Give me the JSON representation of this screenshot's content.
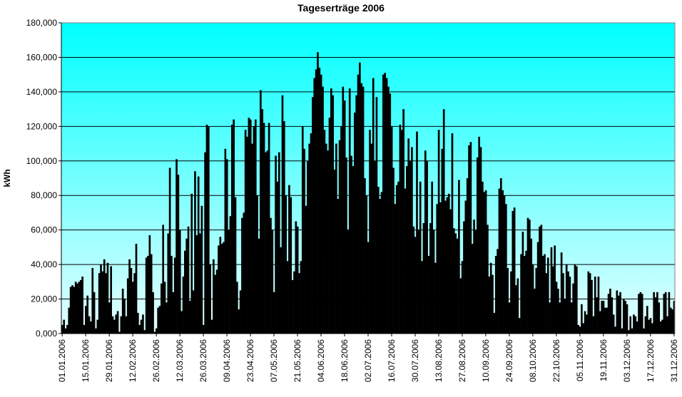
{
  "chart_data": {
    "type": "bar",
    "title": "Tageserträge 2006",
    "y_label": "kWh",
    "color": "#000000",
    "grid": true,
    "background": [
      "#00ffff",
      "#e8ffff"
    ],
    "ylim": [
      0,
      180
    ],
    "yticks": [
      {
        "value": 0,
        "label": "0,000"
      },
      {
        "value": 20,
        "label": "20,000"
      },
      {
        "value": 40,
        "label": "40,000"
      },
      {
        "value": 60,
        "label": "60,000"
      },
      {
        "value": 80,
        "label": "80,000"
      },
      {
        "value": 100,
        "label": "100,000"
      },
      {
        "value": 120,
        "label": "120,000"
      },
      {
        "value": 140,
        "label": "140,000"
      },
      {
        "value": 160,
        "label": "160,000"
      },
      {
        "value": 180,
        "label": "180,000"
      }
    ],
    "categories": [
      "01.01.2006",
      null,
      null,
      null,
      null,
      null,
      null,
      null,
      null,
      null,
      null,
      null,
      null,
      null,
      "15.01.2006",
      null,
      null,
      null,
      null,
      null,
      null,
      null,
      null,
      null,
      null,
      null,
      null,
      null,
      "29.01.2006",
      null,
      null,
      null,
      null,
      null,
      null,
      null,
      null,
      null,
      null,
      null,
      null,
      null,
      "12.02.2006",
      null,
      null,
      null,
      null,
      null,
      null,
      null,
      null,
      null,
      null,
      null,
      null,
      null,
      "26.02.2006",
      null,
      null,
      null,
      null,
      null,
      null,
      null,
      null,
      null,
      null,
      null,
      null,
      null,
      "12.03.2006",
      null,
      null,
      null,
      null,
      null,
      null,
      null,
      null,
      null,
      null,
      null,
      null,
      null,
      "26.03.2006",
      null,
      null,
      null,
      null,
      null,
      null,
      null,
      null,
      null,
      null,
      null,
      null,
      null,
      "09.04.2006",
      null,
      null,
      null,
      null,
      null,
      null,
      null,
      null,
      null,
      null,
      null,
      null,
      null,
      "23.04.2006",
      null,
      null,
      null,
      null,
      null,
      null,
      null,
      null,
      null,
      null,
      null,
      null,
      null,
      "07.05.2006",
      null,
      null,
      null,
      null,
      null,
      null,
      null,
      null,
      null,
      null,
      null,
      null,
      null,
      "21.05.2006",
      null,
      null,
      null,
      null,
      null,
      null,
      null,
      null,
      null,
      null,
      null,
      null,
      null,
      "04.06.2006",
      null,
      null,
      null,
      null,
      null,
      null,
      null,
      null,
      null,
      null,
      null,
      null,
      null,
      "18.06.2006",
      null,
      null,
      null,
      null,
      null,
      null,
      null,
      null,
      null,
      null,
      null,
      null,
      null,
      "02.07.2006",
      null,
      null,
      null,
      null,
      null,
      null,
      null,
      null,
      null,
      null,
      null,
      null,
      null,
      "16.07.2006",
      null,
      null,
      null,
      null,
      null,
      null,
      null,
      null,
      null,
      null,
      null,
      null,
      null,
      "30.07.2006",
      null,
      null,
      null,
      null,
      null,
      null,
      null,
      null,
      null,
      null,
      null,
      null,
      null,
      "13.08.2006",
      null,
      null,
      null,
      null,
      null,
      null,
      null,
      null,
      null,
      null,
      null,
      null,
      null,
      "27.08.2006",
      null,
      null,
      null,
      null,
      null,
      null,
      null,
      null,
      null,
      null,
      null,
      null,
      null,
      "10.09.2006",
      null,
      null,
      null,
      null,
      null,
      null,
      null,
      null,
      null,
      null,
      null,
      null,
      null,
      "24.09.2006",
      null,
      null,
      null,
      null,
      null,
      null,
      null,
      null,
      null,
      null,
      null,
      null,
      null,
      "08.10.2006",
      null,
      null,
      null,
      null,
      null,
      null,
      null,
      null,
      null,
      null,
      null,
      null,
      null,
      "22.10.2006",
      null,
      null,
      null,
      null,
      null,
      null,
      null,
      null,
      null,
      null,
      null,
      null,
      null,
      "05.11.2006",
      null,
      null,
      null,
      null,
      null,
      null,
      null,
      null,
      null,
      null,
      null,
      null,
      null,
      "19.11.2006",
      null,
      null,
      null,
      null,
      null,
      null,
      null,
      null,
      null,
      null,
      null,
      null,
      null,
      "03.12.2006",
      null,
      null,
      null,
      null,
      null,
      null,
      null,
      null,
      null,
      null,
      null,
      null,
      null,
      "17.12.2006",
      null,
      null,
      null,
      null,
      null,
      null,
      null,
      null,
      null,
      null,
      null,
      null,
      null,
      "31.12.2006"
    ],
    "values": [
      5,
      8,
      3,
      5,
      15,
      27,
      28,
      27,
      30,
      29,
      30,
      31,
      33,
      5,
      16,
      22,
      10,
      7,
      38,
      24,
      3,
      8,
      35,
      40,
      36,
      43,
      35,
      41,
      18,
      39,
      10,
      8,
      11,
      13,
      1,
      10,
      26,
      20,
      10,
      32,
      43,
      38,
      30,
      35,
      52,
      12,
      5,
      8,
      11,
      2,
      44,
      45,
      57,
      46,
      24,
      1,
      3,
      15,
      16,
      29,
      63,
      30,
      18,
      58,
      96,
      45,
      24,
      44,
      101,
      92,
      60,
      13,
      33,
      48,
      55,
      62,
      19,
      81,
      25,
      94,
      57,
      91,
      58,
      74,
      5,
      105,
      121,
      120,
      40,
      8,
      43,
      34,
      37,
      51,
      56,
      52,
      53,
      107,
      101,
      60,
      68,
      121,
      124,
      79,
      30,
      14,
      25,
      67,
      70,
      118,
      114,
      125,
      124,
      110,
      120,
      124,
      80,
      55,
      141,
      130,
      122,
      105,
      106,
      122,
      67,
      60,
      24,
      103,
      88,
      105,
      50,
      138,
      123,
      80,
      42,
      86,
      79,
      31,
      36,
      65,
      62,
      35,
      42,
      120,
      107,
      74,
      100,
      110,
      116,
      137,
      148,
      153,
      163,
      154,
      150,
      143,
      118,
      110,
      106,
      125,
      142,
      138,
      95,
      110,
      78,
      112,
      120,
      143,
      135,
      102,
      60,
      142,
      103,
      97,
      128,
      138,
      150,
      157,
      145,
      143,
      90,
      80,
      53,
      118,
      110,
      148,
      100,
      137,
      85,
      78,
      82,
      150,
      151,
      148,
      143,
      139,
      120,
      96,
      75,
      86,
      88,
      121,
      118,
      130,
      84,
      97,
      113,
      100,
      108,
      62,
      56,
      117,
      60,
      88,
      42,
      64,
      106,
      100,
      45,
      64,
      88,
      60,
      41,
      75,
      118,
      76,
      107,
      130,
      77,
      79,
      81,
      72,
      116,
      61,
      58,
      55,
      89,
      32,
      42,
      65,
      77,
      90,
      109,
      111,
      52,
      66,
      60,
      102,
      114,
      108,
      88,
      82,
      83,
      63,
      33,
      41,
      34,
      12,
      45,
      49,
      84,
      90,
      83,
      80,
      75,
      38,
      18,
      36,
      71,
      73,
      28,
      32,
      9,
      46,
      59,
      45,
      48,
      67,
      66,
      55,
      40,
      26,
      38,
      53,
      62,
      63,
      45,
      46,
      35,
      44,
      18,
      50,
      39,
      51,
      30,
      26,
      18,
      47,
      35,
      20,
      40,
      36,
      33,
      18,
      29,
      40,
      39,
      5,
      4,
      17,
      6,
      13,
      11,
      36,
      35,
      31,
      10,
      33,
      21,
      33,
      13,
      19,
      19,
      15,
      15,
      23,
      26,
      21,
      11,
      4,
      25,
      22,
      24,
      3,
      20,
      19,
      17,
      2,
      10,
      3,
      11,
      10,
      7,
      23,
      24,
      23,
      3,
      10,
      16,
      8,
      9,
      6,
      24,
      21,
      24,
      18,
      7,
      8,
      23,
      24,
      10,
      24,
      15,
      14,
      19
    ]
  }
}
